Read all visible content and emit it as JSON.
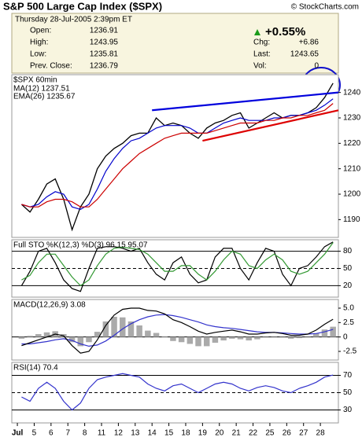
{
  "header": {
    "title": "S&P 500 Large Cap Index ($SPX)",
    "copyright": "© StockCharts.com",
    "date": "Thursday  28-Jul-2005  2:39pm ET",
    "left": [
      [
        "Open:",
        1236.91
      ],
      [
        "High:",
        1243.95
      ],
      [
        "Low:",
        1235.81
      ],
      [
        "Prev. Close:",
        1236.79
      ]
    ],
    "change_pct": "+0.55%",
    "right": [
      [
        "Chg:",
        "+6.86"
      ],
      [
        "Last:",
        1243.65
      ],
      [
        "Vol:",
        0
      ]
    ]
  },
  "chart_data": [
    {
      "type": "line",
      "title": "$SPX 60min",
      "xlim": [
        -0.33,
        19.07
      ],
      "ylim": [
        1183,
        1247
      ],
      "yticks": [
        1190,
        1200,
        1210,
        1220,
        1230,
        1240
      ],
      "grid": false,
      "x": [
        0.25,
        0.75,
        1.25,
        1.75,
        2.25,
        2.75,
        3.25,
        3.75,
        4.25,
        4.75,
        5.25,
        5.75,
        6.25,
        6.75,
        7.25,
        7.75,
        8.25,
        8.75,
        9.25,
        9.75,
        10.25,
        10.75,
        11.25,
        11.75,
        12.25,
        12.75,
        13.25,
        13.75,
        14.25,
        14.75,
        15.25,
        15.75,
        16.25,
        16.75,
        17.25,
        17.75,
        18.25,
        18.75
      ],
      "series": [
        {
          "color": "#000000",
          "values": [
            1196,
            1193,
            1198,
            1204,
            1206,
            1198,
            1186,
            1195,
            1200,
            1210,
            1215,
            1218,
            1220,
            1223,
            1224,
            1224,
            1230,
            1227,
            1228,
            1227,
            1224,
            1222,
            1226,
            1228,
            1229,
            1231,
            1232,
            1226,
            1228,
            1230,
            1232,
            1230,
            1231,
            1231,
            1232,
            1234,
            1238,
            1243.65
          ]
        },
        {
          "name": "MA(12) 1237.51",
          "color": "#0000cc",
          "values": [
            1196,
            1195,
            1196,
            1199,
            1201,
            1200,
            1195,
            1194,
            1196,
            1202,
            1209,
            1214,
            1218,
            1221,
            1222,
            1224,
            1226,
            1227,
            1227,
            1227,
            1226,
            1224,
            1224,
            1226,
            1228,
            1229,
            1230,
            1229,
            1229,
            1229,
            1230,
            1230,
            1231,
            1231,
            1232,
            1233,
            1235,
            1237.51
          ]
        },
        {
          "name": "EMA(26) 1235.67",
          "color": "#cc0000",
          "values": [
            1196,
            1195,
            1195,
            1197,
            1198,
            1198,
            1197,
            1195,
            1195,
            1198,
            1202,
            1206,
            1210,
            1213,
            1216,
            1218,
            1220,
            1222,
            1223,
            1224,
            1224,
            1224,
            1224,
            1225,
            1226,
            1227,
            1228,
            1228,
            1228,
            1229,
            1229,
            1230,
            1230,
            1231,
            1231,
            1232,
            1233,
            1235.67
          ]
        }
      ],
      "trendlines": [
        {
          "color": "#0000dd",
          "x": [
            8,
            19.07
          ],
          "values": [
            1233,
            1240
          ]
        },
        {
          "color": "#dd0000",
          "x": [
            11,
            19.07
          ],
          "values": [
            1221,
            1233
          ]
        }
      ]
    },
    {
      "type": "line",
      "title": "Full STO %K(12,3) %D(3) 96.15 95.07",
      "xlim": [
        -0.33,
        19.07
      ],
      "ylim": [
        0,
        100
      ],
      "yticks": [
        20,
        50,
        80
      ],
      "grid": true,
      "grid_styles": [
        "solid",
        "dashed",
        "solid"
      ],
      "x": [
        0.25,
        0.75,
        1.25,
        1.75,
        2.25,
        2.75,
        3.25,
        3.75,
        4.25,
        4.75,
        5.25,
        5.75,
        6.25,
        6.75,
        7.25,
        7.75,
        8.25,
        8.75,
        9.25,
        9.75,
        10.25,
        10.75,
        11.25,
        11.75,
        12.25,
        12.75,
        13.25,
        13.75,
        14.25,
        14.75,
        15.25,
        15.75,
        16.25,
        16.75,
        17.25,
        17.75,
        18.25,
        18.75
      ],
      "series": [
        {
          "color": "#000000",
          "values": [
            20,
            45,
            80,
            85,
            60,
            30,
            15,
            10,
            50,
            85,
            88,
            88,
            85,
            80,
            85,
            60,
            40,
            30,
            60,
            70,
            40,
            25,
            30,
            70,
            85,
            85,
            50,
            30,
            60,
            85,
            80,
            40,
            20,
            50,
            55,
            70,
            88,
            96.15
          ]
        },
        {
          "color": "#339933",
          "values": [
            30,
            38,
            60,
            75,
            75,
            55,
            35,
            20,
            30,
            55,
            75,
            85,
            87,
            85,
            83,
            75,
            60,
            45,
            45,
            55,
            55,
            40,
            30,
            45,
            65,
            80,
            75,
            55,
            50,
            65,
            75,
            65,
            45,
            40,
            45,
            60,
            75,
            95.07
          ]
        }
      ]
    },
    {
      "type": "line",
      "title": "MACD(12,26,9) 3.08",
      "xlim": [
        -0.33,
        19.07
      ],
      "ylim": [
        -4,
        6.5
      ],
      "yticks": [
        {
          "value": -2.5,
          "label": "-2.5"
        },
        0,
        {
          "value": 2.5,
          "label": "2.5"
        },
        {
          "value": 5,
          "label": "5.0"
        }
      ],
      "grid": true,
      "grid_styles": [
        "none",
        "solid",
        "none",
        "none"
      ],
      "x": [
        0.25,
        0.75,
        1.25,
        1.75,
        2.25,
        2.75,
        3.25,
        3.75,
        4.25,
        4.75,
        5.25,
        5.75,
        6.25,
        6.75,
        7.25,
        7.75,
        8.25,
        8.75,
        9.25,
        9.75,
        10.25,
        10.75,
        11.25,
        11.75,
        12.25,
        12.75,
        13.25,
        13.75,
        14.25,
        14.75,
        15.25,
        15.75,
        16.25,
        16.75,
        17.25,
        17.75,
        18.25,
        18.75
      ],
      "series": [
        {
          "kind": "bar",
          "color": "#aaaaaa",
          "values": [
            -0.3,
            0.2,
            0.5,
            0.8,
            1,
            0.5,
            -0.9,
            -1.6,
            -0.9,
            0.9,
            2.7,
            3.5,
            3.4,
            2.7,
            2,
            1.1,
            0.7,
            0.1,
            -0.7,
            -0.9,
            -1.2,
            -1.6,
            -1.6,
            -1,
            -0.6,
            -0.3,
            -0.4,
            -0.6,
            -0.4,
            -0.1,
            0,
            -0.1,
            -0.3,
            -0.2,
            0,
            0.6,
            1.3,
            1.78
          ]
        },
        {
          "color": "#3333cc",
          "values": [
            -1.2,
            -1.2,
            -1,
            -0.8,
            -0.5,
            -0.3,
            -0.6,
            -1.2,
            -1.6,
            -1.4,
            -0.7,
            0.3,
            1.4,
            2.3,
            3,
            3.5,
            3.8,
            3.9,
            3.7,
            3.4,
            3,
            2.6,
            2.1,
            1.8,
            1.6,
            1.5,
            1.3,
            1.1,
            0.9,
            0.8,
            0.8,
            0.7,
            0.6,
            0.5,
            0.5,
            0.6,
            0.9,
            1.3
          ]
        },
        {
          "color": "#000000",
          "values": [
            -1.5,
            -1,
            -0.5,
            0,
            0.5,
            0.2,
            -1.5,
            -2.8,
            -2.5,
            -0.5,
            2,
            3.8,
            4.8,
            5,
            5,
            4.6,
            4.5,
            4,
            3,
            2.5,
            1.8,
            1,
            0.5,
            0.8,
            1,
            1.2,
            0.9,
            0.5,
            0.5,
            0.7,
            0.8,
            0.6,
            0.3,
            0.3,
            0.5,
            1.2,
            2.2,
            3.08
          ]
        }
      ]
    },
    {
      "type": "line",
      "title": "RSI(14) 70.4",
      "xlim": [
        -0.33,
        19.07
      ],
      "ylim": [
        15,
        85
      ],
      "yticks": [
        30,
        50,
        70
      ],
      "grid": true,
      "grid_styles": [
        "solid",
        "dashed",
        "solid"
      ],
      "x": [
        0.25,
        0.75,
        1.25,
        1.75,
        2.25,
        2.75,
        3.25,
        3.75,
        4.25,
        4.75,
        5.25,
        5.75,
        6.25,
        6.75,
        7.25,
        7.75,
        8.25,
        8.75,
        9.25,
        9.75,
        10.25,
        10.75,
        11.25,
        11.75,
        12.25,
        12.75,
        13.25,
        13.75,
        14.25,
        14.75,
        15.25,
        15.75,
        16.25,
        16.75,
        17.25,
        17.75,
        18.25,
        18.75
      ],
      "series": [
        {
          "color": "#3333cc",
          "values": [
            45,
            40,
            55,
            62,
            55,
            40,
            30,
            38,
            55,
            65,
            68,
            70,
            72,
            70,
            68,
            60,
            55,
            52,
            58,
            60,
            55,
            50,
            55,
            60,
            62,
            60,
            55,
            52,
            56,
            58,
            56,
            52,
            50,
            55,
            58,
            62,
            68,
            70.4
          ]
        }
      ],
      "xticks": [
        {
          "value": 0,
          "label": "Jul"
        },
        {
          "value": 1,
          "label": "5"
        },
        {
          "value": 2,
          "label": "6"
        },
        {
          "value": 3,
          "label": "7"
        },
        {
          "value": 4,
          "label": "8"
        },
        {
          "value": 5,
          "label": "11"
        },
        {
          "value": 6,
          "label": "12"
        },
        {
          "value": 7,
          "label": "13"
        },
        {
          "value": 8,
          "label": "14"
        },
        {
          "value": 9,
          "label": "15"
        },
        {
          "value": 10,
          "label": "18"
        },
        {
          "value": 11,
          "label": "19"
        },
        {
          "value": 12,
          "label": "20"
        },
        {
          "value": 13,
          "label": "21"
        },
        {
          "value": 14,
          "label": "22"
        },
        {
          "value": 15,
          "label": "25"
        },
        {
          "value": 16,
          "label": "26"
        },
        {
          "value": 17,
          "label": "27"
        },
        {
          "value": 18,
          "label": "28"
        }
      ]
    }
  ]
}
